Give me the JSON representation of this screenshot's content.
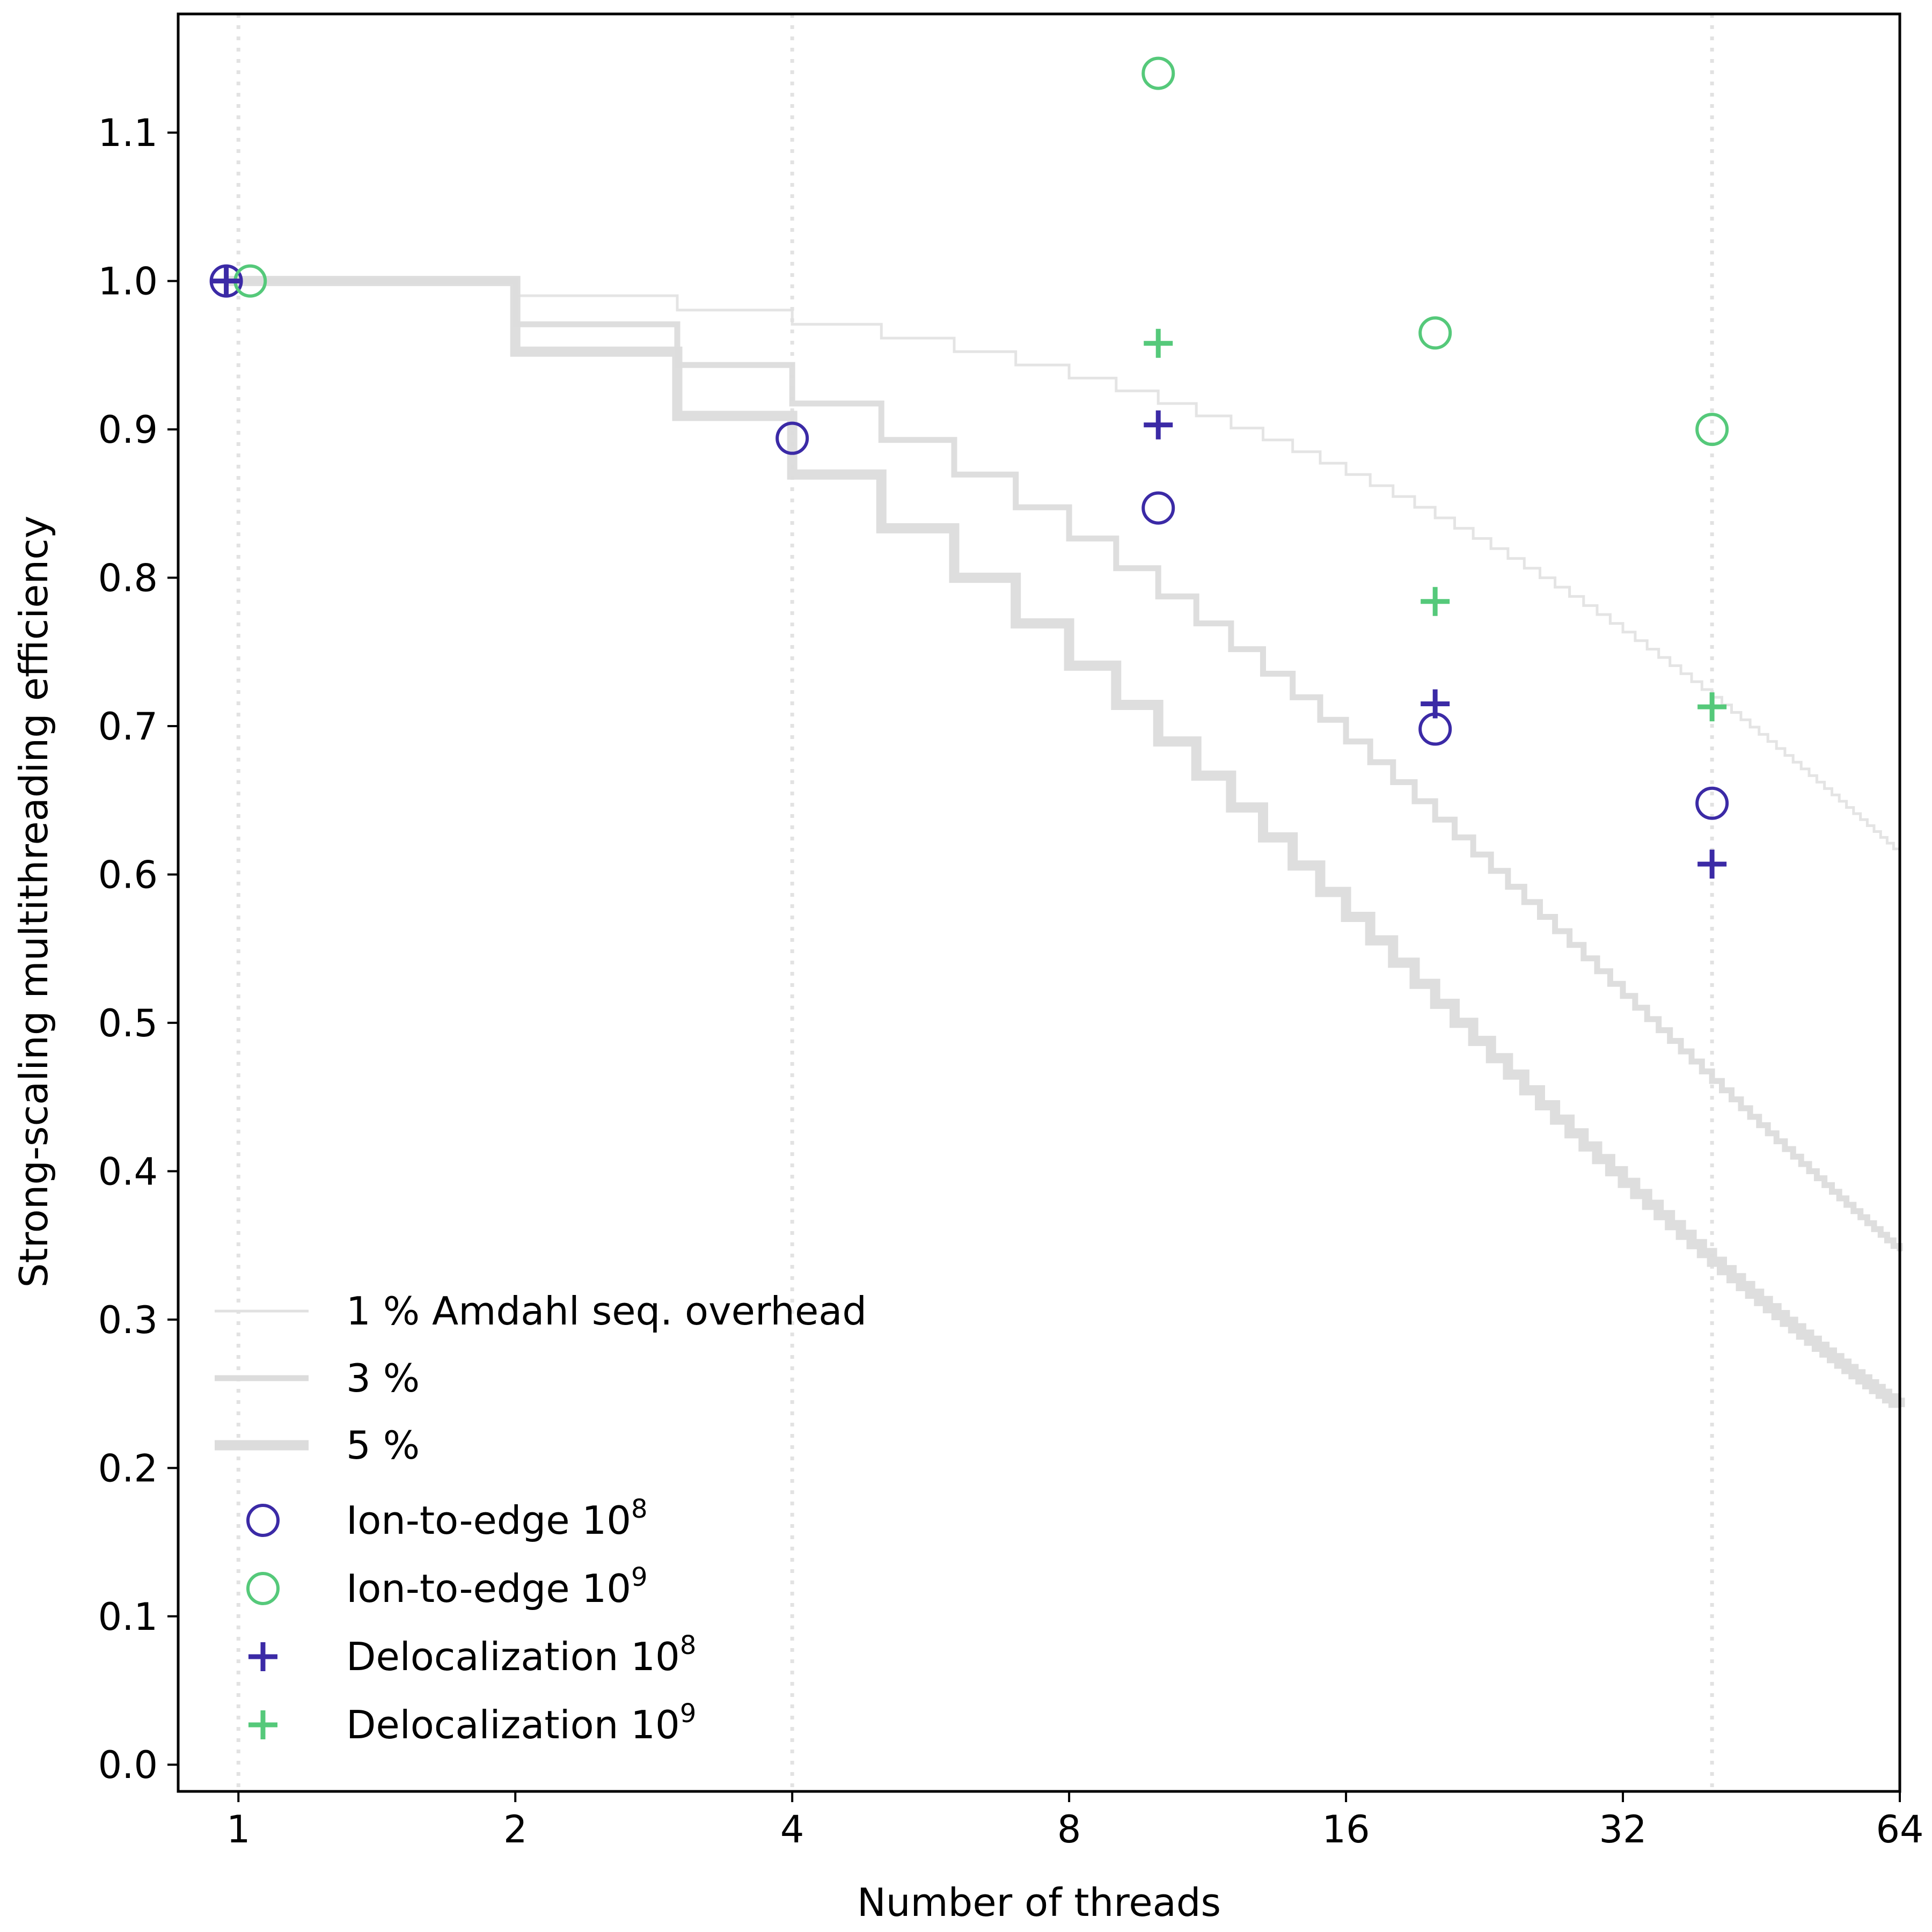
{
  "chart_data": {
    "type": "scatter",
    "xlabel": "Number of threads",
    "ylabel": "Strong-scaling multithreading efficiency",
    "xscale": "log2",
    "xlim": [
      0.86,
      64
    ],
    "ylim": [
      -0.018,
      1.18
    ],
    "xticks": [
      1,
      2,
      4,
      8,
      16,
      32,
      64
    ],
    "xtick_labels": [
      "1",
      "2",
      "4",
      "8",
      "16",
      "32",
      "64"
    ],
    "yticks": [
      0.0,
      0.1,
      0.2,
      0.3,
      0.4,
      0.5,
      0.6,
      0.7,
      0.8,
      0.9,
      1.0,
      1.1
    ],
    "ytick_labels": [
      "0.0",
      "0.1",
      "0.2",
      "0.3",
      "0.4",
      "0.5",
      "0.6",
      "0.7",
      "0.8",
      "0.9",
      "1.0",
      "1.1"
    ],
    "vlines": [
      1,
      4,
      40
    ],
    "amdahl_curves": [
      {
        "name": "1 % Amdahl seq. overhead",
        "fraction": 0.01,
        "color": "#e1e1e1"
      },
      {
        "name": "3 %",
        "fraction": 0.03,
        "color": "#dcdcdc"
      },
      {
        "name": "5 %",
        "fraction": 0.05,
        "color": "#dcdcdc"
      }
    ],
    "series": [
      {
        "name": "Ion-to-edge",
        "exponent": "8",
        "marker": "circle",
        "color": "#3b2aa6",
        "points": [
          {
            "x": 0.97,
            "y": 1.0
          },
          {
            "x": 4,
            "y": 0.894
          },
          {
            "x": 10,
            "y": 0.847
          },
          {
            "x": 20,
            "y": 0.698
          },
          {
            "x": 40,
            "y": 0.648
          }
        ]
      },
      {
        "name": "Ion-to-edge",
        "exponent": "9",
        "marker": "circle",
        "color": "#55c97a",
        "points": [
          {
            "x": 1.03,
            "y": 1.0
          },
          {
            "x": 10,
            "y": 1.14
          },
          {
            "x": 20,
            "y": 0.965
          },
          {
            "x": 40,
            "y": 0.9
          }
        ]
      },
      {
        "name": "Delocalization",
        "exponent": "8",
        "marker": "plus",
        "color": "#3b2aa6",
        "points": [
          {
            "x": 0.97,
            "y": 1.0
          },
          {
            "x": 10,
            "y": 0.903
          },
          {
            "x": 20,
            "y": 0.715
          },
          {
            "x": 40,
            "y": 0.607
          }
        ]
      },
      {
        "name": "Delocalization",
        "exponent": "9",
        "marker": "plus",
        "color": "#55c97a",
        "points": [
          {
            "x": 10,
            "y": 0.958
          },
          {
            "x": 20,
            "y": 0.784
          },
          {
            "x": 40,
            "y": 0.713
          }
        ]
      }
    ],
    "legend": {
      "location": "lower-left",
      "entries": [
        {
          "label": "1 % Amdahl seq. overhead",
          "sup": ""
        },
        {
          "label": "3 %",
          "sup": ""
        },
        {
          "label": "5 %",
          "sup": ""
        },
        {
          "label": "Ion-to-edge 10",
          "sup": "8"
        },
        {
          "label": "Ion-to-edge 10",
          "sup": "9"
        },
        {
          "label": "Delocalization 10",
          "sup": "8"
        },
        {
          "label": "Delocalization 10",
          "sup": "9"
        }
      ]
    }
  }
}
